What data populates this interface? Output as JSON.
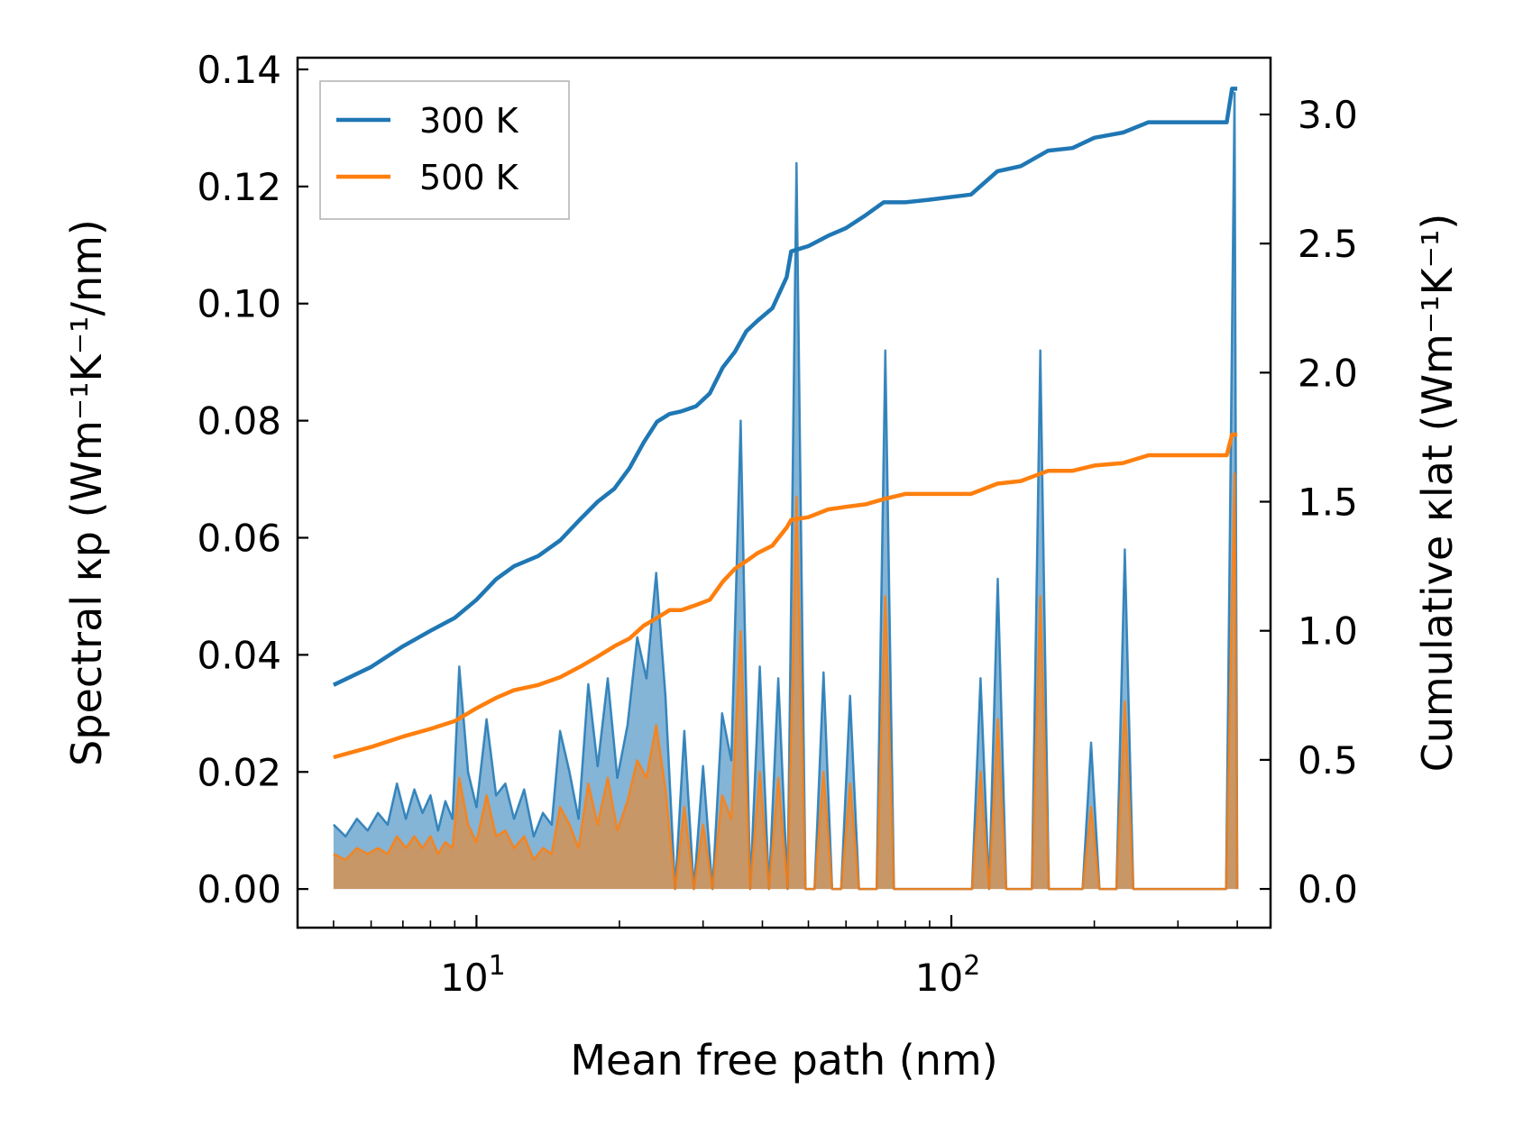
{
  "chart_data": {
    "type": "line",
    "xscale": "log",
    "xlabel": "Mean free path (nm)",
    "ylabel_left": "Spectral κp (Wm⁻¹K⁻¹/nm)",
    "ylabel_right": "Cumulative κlat (Wm⁻¹K⁻¹)",
    "xlim": [
      4.2,
      470
    ],
    "ylim_left": [
      -0.0066,
      0.142
    ],
    "ylim_right": [
      -0.15,
      3.22
    ],
    "x_ticks": [
      {
        "base": "10",
        "exp": "1",
        "value": 10
      },
      {
        "base": "10",
        "exp": "2",
        "value": 100
      }
    ],
    "y_left_ticks": [
      "0.00",
      "0.02",
      "0.04",
      "0.06",
      "0.08",
      "0.10",
      "0.12",
      "0.14"
    ],
    "y_right_ticks": [
      "0.0",
      "0.5",
      "1.0",
      "1.5",
      "2.0",
      "2.5",
      "3.0"
    ],
    "legend": {
      "position": "top-left",
      "entries": [
        {
          "label": "300 K",
          "color": "#1f77b4"
        },
        {
          "label": "500 K",
          "color": "#ff7f0e"
        }
      ]
    },
    "colors": {
      "blue": "#1f77b4",
      "orange": "#ff7f0e"
    },
    "spectral_axis": "left",
    "cumulative_axis": "right",
    "series": [
      {
        "name": "300 K",
        "kind": "spectral",
        "x": [
          5.0,
          5.3,
          5.6,
          5.9,
          6.2,
          6.5,
          6.8,
          7.1,
          7.4,
          7.7,
          8.0,
          8.3,
          8.6,
          8.9,
          9.2,
          9.6,
          10.0,
          10.5,
          11.0,
          11.5,
          12.0,
          12.6,
          13.2,
          13.8,
          14.4,
          15.0,
          15.7,
          16.4,
          17.2,
          18.0,
          18.9,
          19.8,
          20.8,
          21.8,
          22.8,
          23.9,
          25.0,
          26.2,
          27.4,
          28.7,
          30.0,
          31.4,
          32.9,
          34.4,
          36.0,
          37.7,
          39.5,
          41.3,
          43.2,
          45.2,
          47.2,
          49.3,
          51.5,
          53.8,
          56.1,
          58.6,
          61.2,
          63.9,
          66.7,
          69.6,
          72.6,
          75.7,
          79.0,
          82.4,
          86.0,
          89.7,
          93.5,
          97.5,
          101.7,
          106.0,
          110.5,
          115.2,
          120.1,
          125.2,
          130.5,
          136.0,
          141.7,
          147.7,
          153.9,
          160.4,
          167.1,
          174.1,
          181.4,
          189.0,
          196.9,
          205.1,
          213.7,
          222.6,
          231.9,
          241.6,
          251.7,
          262.2,
          273.1,
          284.5,
          296.4,
          308.8,
          321.7,
          335.1,
          349.1,
          363.7,
          378.9,
          394.7,
          400.0
        ],
        "values": [
          0.011,
          0.009,
          0.012,
          0.01,
          0.013,
          0.011,
          0.018,
          0.012,
          0.017,
          0.013,
          0.016,
          0.01,
          0.015,
          0.012,
          0.038,
          0.02,
          0.014,
          0.029,
          0.016,
          0.018,
          0.012,
          0.017,
          0.009,
          0.013,
          0.011,
          0.027,
          0.02,
          0.012,
          0.035,
          0.021,
          0.036,
          0.019,
          0.028,
          0.043,
          0.036,
          0.054,
          0.033,
          0.0,
          0.027,
          0.0,
          0.021,
          0.0,
          0.03,
          0.022,
          0.08,
          0.0,
          0.038,
          0.0,
          0.036,
          0.0,
          0.124,
          0.0,
          0.0,
          0.037,
          0.0,
          0.0,
          0.033,
          0.0,
          0.0,
          0.0,
          0.092,
          0.0,
          0.0,
          0.0,
          0.0,
          0.0,
          0.0,
          0.0,
          0.0,
          0.0,
          0.0,
          0.036,
          0.0,
          0.053,
          0.0,
          0.0,
          0.0,
          0.0,
          0.092,
          0.0,
          0.0,
          0.0,
          0.0,
          0.0,
          0.025,
          0.0,
          0.0,
          0.0,
          0.058,
          0.0,
          0.0,
          0.0,
          0.0,
          0.0,
          0.0,
          0.0,
          0.0,
          0.0,
          0.0,
          0.0,
          0.0,
          0.136,
          0.0
        ]
      },
      {
        "name": "500 K",
        "kind": "spectral",
        "x": [
          5.0,
          5.3,
          5.6,
          5.9,
          6.2,
          6.5,
          6.8,
          7.1,
          7.4,
          7.7,
          8.0,
          8.3,
          8.6,
          8.9,
          9.2,
          9.6,
          10.0,
          10.5,
          11.0,
          11.5,
          12.0,
          12.6,
          13.2,
          13.8,
          14.4,
          15.0,
          15.7,
          16.4,
          17.2,
          18.0,
          18.9,
          19.8,
          20.8,
          21.8,
          22.8,
          23.9,
          25.0,
          26.2,
          27.4,
          28.7,
          30.0,
          31.4,
          32.9,
          34.4,
          36.0,
          37.7,
          39.5,
          41.3,
          43.2,
          45.2,
          47.2,
          49.3,
          51.5,
          53.8,
          56.1,
          58.6,
          61.2,
          63.9,
          66.7,
          69.6,
          72.6,
          75.7,
          79.0,
          82.4,
          86.0,
          89.7,
          93.5,
          97.5,
          101.7,
          106.0,
          110.5,
          115.2,
          120.1,
          125.2,
          130.5,
          136.0,
          141.7,
          147.7,
          153.9,
          160.4,
          167.1,
          174.1,
          181.4,
          189.0,
          196.9,
          205.1,
          213.7,
          222.6,
          231.9,
          241.6,
          251.7,
          262.2,
          273.1,
          284.5,
          296.4,
          308.8,
          321.7,
          335.1,
          349.1,
          363.7,
          378.9,
          394.7,
          400.0
        ],
        "values": [
          0.006,
          0.005,
          0.007,
          0.006,
          0.007,
          0.006,
          0.009,
          0.007,
          0.009,
          0.007,
          0.009,
          0.006,
          0.008,
          0.007,
          0.019,
          0.011,
          0.008,
          0.016,
          0.009,
          0.01,
          0.007,
          0.009,
          0.005,
          0.007,
          0.006,
          0.014,
          0.011,
          0.007,
          0.018,
          0.011,
          0.019,
          0.01,
          0.015,
          0.022,
          0.019,
          0.028,
          0.017,
          0.0,
          0.014,
          0.0,
          0.011,
          0.0,
          0.016,
          0.012,
          0.044,
          0.0,
          0.02,
          0.0,
          0.019,
          0.0,
          0.067,
          0.0,
          0.0,
          0.02,
          0.0,
          0.0,
          0.018,
          0.0,
          0.0,
          0.0,
          0.05,
          0.0,
          0.0,
          0.0,
          0.0,
          0.0,
          0.0,
          0.0,
          0.0,
          0.0,
          0.0,
          0.02,
          0.0,
          0.029,
          0.0,
          0.0,
          0.0,
          0.0,
          0.05,
          0.0,
          0.0,
          0.0,
          0.0,
          0.0,
          0.014,
          0.0,
          0.0,
          0.0,
          0.032,
          0.0,
          0.0,
          0.0,
          0.0,
          0.0,
          0.0,
          0.0,
          0.0,
          0.0,
          0.0,
          0.0,
          0.0,
          0.071,
          0.0
        ]
      },
      {
        "name": "300 K",
        "kind": "cumulative",
        "x": [
          5.0,
          6.0,
          7.0,
          8.0,
          9.0,
          10.0,
          11.0,
          12.0,
          13.5,
          15.0,
          16.5,
          18.0,
          19.5,
          21.0,
          22.5,
          24.0,
          25.5,
          27.0,
          29.0,
          31.0,
          33.0,
          35.0,
          37.0,
          39.0,
          42.0,
          45.0,
          46.0,
          50.0,
          55.0,
          60.0,
          66.0,
          72.0,
          80.0,
          90.0,
          110.0,
          125.0,
          140.0,
          160.0,
          180.0,
          200.0,
          230.0,
          260.0,
          300.0,
          380.0,
          390.0,
          400.0
        ],
        "values": [
          0.79,
          0.86,
          0.94,
          1.0,
          1.05,
          1.12,
          1.2,
          1.25,
          1.29,
          1.35,
          1.43,
          1.5,
          1.55,
          1.63,
          1.73,
          1.81,
          1.84,
          1.85,
          1.87,
          1.92,
          2.02,
          2.08,
          2.16,
          2.2,
          2.25,
          2.37,
          2.47,
          2.49,
          2.53,
          2.56,
          2.61,
          2.66,
          2.66,
          2.67,
          2.69,
          2.78,
          2.8,
          2.86,
          2.87,
          2.91,
          2.93,
          2.97,
          2.97,
          2.97,
          3.1,
          3.1
        ]
      },
      {
        "name": "500 K",
        "kind": "cumulative",
        "x": [
          5.0,
          6.0,
          7.0,
          8.0,
          9.0,
          10.0,
          11.0,
          12.0,
          13.5,
          15.0,
          16.5,
          18.0,
          19.5,
          21.0,
          22.5,
          24.0,
          25.5,
          27.0,
          29.0,
          31.0,
          33.0,
          35.0,
          37.0,
          39.0,
          42.0,
          45.0,
          46.0,
          50.0,
          55.0,
          60.0,
          66.0,
          72.0,
          80.0,
          90.0,
          110.0,
          125.0,
          140.0,
          160.0,
          180.0,
          200.0,
          230.0,
          260.0,
          300.0,
          380.0,
          390.0,
          400.0
        ],
        "values": [
          0.51,
          0.55,
          0.59,
          0.62,
          0.65,
          0.7,
          0.74,
          0.77,
          0.79,
          0.82,
          0.86,
          0.9,
          0.94,
          0.97,
          1.02,
          1.05,
          1.08,
          1.08,
          1.1,
          1.12,
          1.19,
          1.24,
          1.27,
          1.3,
          1.33,
          1.4,
          1.43,
          1.44,
          1.47,
          1.48,
          1.49,
          1.51,
          1.53,
          1.53,
          1.53,
          1.57,
          1.58,
          1.62,
          1.62,
          1.64,
          1.65,
          1.68,
          1.68,
          1.68,
          1.76,
          1.76
        ]
      }
    ]
  }
}
